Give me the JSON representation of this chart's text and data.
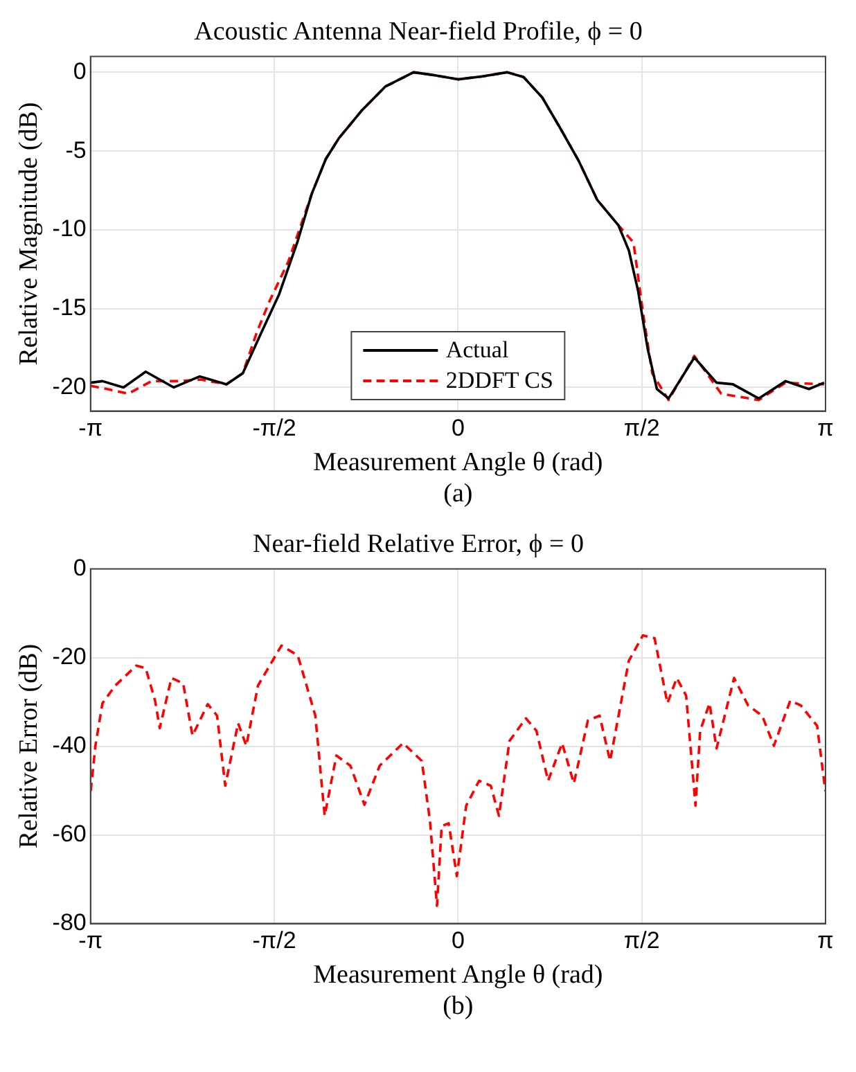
{
  "chart_data": [
    {
      "type": "line",
      "title": "Acoustic Antenna Near-field Profile, ϕ = 0",
      "xlabel": "Measurement Angle θ (rad)",
      "ylabel": "Relative Magnitude (dB)",
      "annotations": [
        "(a)"
      ],
      "xlim": [
        -3.1416,
        3.1416
      ],
      "xticks": [
        {
          "value": -3.1416,
          "label": "-π"
        },
        {
          "value": -1.5708,
          "label": "-π/2"
        },
        0,
        {
          "value": 1.5708,
          "label": "π/2"
        },
        {
          "value": 3.1416,
          "label": "π"
        }
      ],
      "ylim": [
        -21.5,
        1
      ],
      "yticks": [
        -20,
        -15,
        -10,
        -5,
        0
      ],
      "grid": true,
      "legend": "bottom",
      "marker": "none",
      "series": [
        {
          "name": "Actual",
          "color": "#000000",
          "line_style": "solid",
          "x": [
            -3.14,
            -3.04,
            -2.86,
            -2.67,
            -2.43,
            -2.21,
            -1.98,
            -1.84,
            -1.68,
            -1.53,
            -1.37,
            -1.25,
            -1.13,
            -1.02,
            -0.82,
            -0.62,
            -0.38,
            -0.19,
            0,
            0.21,
            0.42,
            0.56,
            0.72,
            0.87,
            1.03,
            1.19,
            1.37,
            1.46,
            1.54,
            1.62,
            1.7,
            1.8,
            2.02,
            2.21,
            2.35,
            2.57,
            2.8,
            3.0,
            3.13
          ],
          "values": [
            -19.7,
            -19.6,
            -20.0,
            -19.0,
            -20.0,
            -19.3,
            -19.8,
            -19.1,
            -16.5,
            -14.1,
            -10.7,
            -7.7,
            -5.5,
            -4.2,
            -2.4,
            -0.9,
            0,
            -0.2,
            -0.45,
            -0.26,
            0,
            -0.3,
            -1.6,
            -3.5,
            -5.6,
            -8.1,
            -9.7,
            -11.3,
            -13.9,
            -17.5,
            -20.1,
            -20.7,
            -18.1,
            -19.7,
            -19.8,
            -20.7,
            -19.6,
            -20.1,
            -19.7
          ]
        },
        {
          "name": "2DDFT CS",
          "color": "#ff0000",
          "line_style": "dashed",
          "x": [
            -3.14,
            -3.0,
            -2.82,
            -2.62,
            -2.4,
            -2.2,
            -1.98,
            -1.84,
            -1.72,
            -1.61,
            -1.45,
            -1.25,
            -1.13,
            -1.02,
            -0.82,
            -0.62,
            -0.38,
            -0.19,
            0,
            0.21,
            0.42,
            0.56,
            0.72,
            0.87,
            1.03,
            1.19,
            1.37,
            1.5,
            1.58,
            1.66,
            1.8,
            2.02,
            2.25,
            2.57,
            2.8,
            3.13
          ],
          "values": [
            -19.9,
            -20.1,
            -20.4,
            -19.6,
            -19.6,
            -19.5,
            -19.8,
            -19.1,
            -16.5,
            -14.5,
            -12.0,
            -7.7,
            -5.5,
            -4.2,
            -2.4,
            -0.9,
            0,
            -0.2,
            -0.45,
            -0.26,
            0,
            -0.3,
            -1.6,
            -3.5,
            -5.6,
            -8.1,
            -9.7,
            -10.8,
            -15.2,
            -19.1,
            -20.8,
            -18.0,
            -20.4,
            -20.8,
            -19.7,
            -19.8
          ]
        }
      ]
    },
    {
      "type": "line",
      "title": "Near-field Relative Error, ϕ = 0",
      "xlabel": "Measurement Angle θ (rad)",
      "ylabel": "Relative Error (dB)",
      "annotations": [
        "(b)"
      ],
      "xlim": [
        -3.1416,
        3.1416
      ],
      "xticks": [
        {
          "value": -3.1416,
          "label": "-π"
        },
        {
          "value": -1.5708,
          "label": "-π/2"
        },
        0,
        {
          "value": 1.5708,
          "label": "π/2"
        },
        {
          "value": 3.1416,
          "label": "π"
        }
      ],
      "ylim": [
        -80,
        0
      ],
      "yticks": [
        -80,
        -60,
        -40,
        -20,
        0
      ],
      "grid": true,
      "marker": "none",
      "series": [
        {
          "color": "#ff0000",
          "line_style": "dashed",
          "x": [
            -3.14,
            -3.1,
            -3.04,
            -2.93,
            -2.75,
            -2.67,
            -2.59,
            -2.55,
            -2.45,
            -2.35,
            -2.27,
            -2.14,
            -2.06,
            -1.99,
            -1.88,
            -1.81,
            -1.71,
            -1.51,
            -1.37,
            -1.22,
            -1.14,
            -1.04,
            -0.92,
            -0.8,
            -0.67,
            -0.47,
            -0.31,
            -0.24,
            -0.18,
            -0.14,
            -0.08,
            -0.01,
            0.07,
            0.18,
            0.28,
            0.35,
            0.44,
            0.58,
            0.67,
            0.77,
            0.89,
            0.99,
            1.11,
            1.21,
            1.3,
            1.46,
            1.58,
            1.68,
            1.79,
            1.87,
            1.95,
            2.03,
            2.07,
            2.15,
            2.21,
            2.36,
            2.48,
            2.6,
            2.7,
            2.84,
            2.93,
            3.07,
            3.14
          ],
          "values": [
            -50.1,
            -39.9,
            -30.3,
            -26.3,
            -21.8,
            -22.4,
            -29.7,
            -35.9,
            -24.6,
            -25.8,
            -37.6,
            -30.5,
            -33.1,
            -48.9,
            -34.8,
            -39.9,
            -26.3,
            -17.3,
            -19.5,
            -33.1,
            -55.7,
            -42.1,
            -44.4,
            -53.2,
            -44.4,
            -39.3,
            -43.3,
            -56.8,
            -76.0,
            -58.0,
            -57.4,
            -69.3,
            -53.4,
            -47.8,
            -48.9,
            -55.7,
            -38.8,
            -33.7,
            -36.5,
            -47.8,
            -39.3,
            -48.4,
            -34.2,
            -33.1,
            -43.3,
            -20.7,
            -15.0,
            -15.6,
            -30.3,
            -24.6,
            -28.6,
            -53.4,
            -36.5,
            -30.3,
            -40.5,
            -24.6,
            -30.8,
            -33.1,
            -39.9,
            -29.7,
            -30.8,
            -35.4,
            -50.1
          ]
        }
      ]
    }
  ]
}
